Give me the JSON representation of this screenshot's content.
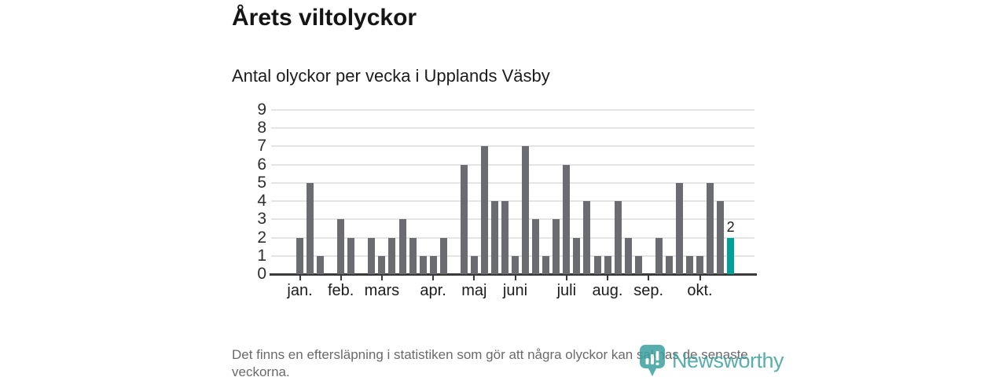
{
  "header": {
    "title": "Årets viltolyckor",
    "subtitle": "Antal olyckor per vecka i Upplands Väsby"
  },
  "chart_data": {
    "type": "bar",
    "title": "Årets viltolyckor",
    "subtitle": "Antal olyckor per vecka i Upplands Väsby",
    "ylabel": "",
    "xlabel": "",
    "ylim": [
      0,
      9
    ],
    "y_ticks": [
      0,
      1,
      2,
      3,
      4,
      5,
      6,
      7,
      8,
      9
    ],
    "grid": "horizontal",
    "values": [
      2,
      5,
      1,
      0,
      3,
      2,
      0,
      2,
      1,
      2,
      3,
      2,
      1,
      1,
      2,
      0,
      6,
      1,
      7,
      4,
      4,
      1,
      7,
      3,
      1,
      3,
      6,
      2,
      4,
      1,
      1,
      4,
      2,
      1,
      0,
      2,
      1,
      5,
      1,
      1,
      5,
      4,
      2
    ],
    "x_unit": "week",
    "month_ticks": [
      {
        "label": "jan.",
        "week_index": 0
      },
      {
        "label": "feb.",
        "week_index": 4
      },
      {
        "label": "mars",
        "week_index": 8
      },
      {
        "label": "apr.",
        "week_index": 13
      },
      {
        "label": "maj",
        "week_index": 17
      },
      {
        "label": "juni",
        "week_index": 21
      },
      {
        "label": "juli",
        "week_index": 26
      },
      {
        "label": "aug.",
        "week_index": 30
      },
      {
        "label": "sep.",
        "week_index": 34
      },
      {
        "label": "okt.",
        "week_index": 39
      }
    ],
    "highlight_last_bar": true,
    "last_value_label": "2",
    "colors": {
      "bar": "#6b6b72",
      "highlight": "#00a09b",
      "gridline": "#e4e4e4",
      "axis": "#3a3a3a",
      "text": "#151515",
      "note": "#6a6a6a",
      "logo": "#3aa19e"
    }
  },
  "footer": {
    "note": "Det finns en eftersläpning i statistiken som gör att några olyckor kan saknas de senaste veckorna.",
    "logo_text": "Newsworthy"
  }
}
